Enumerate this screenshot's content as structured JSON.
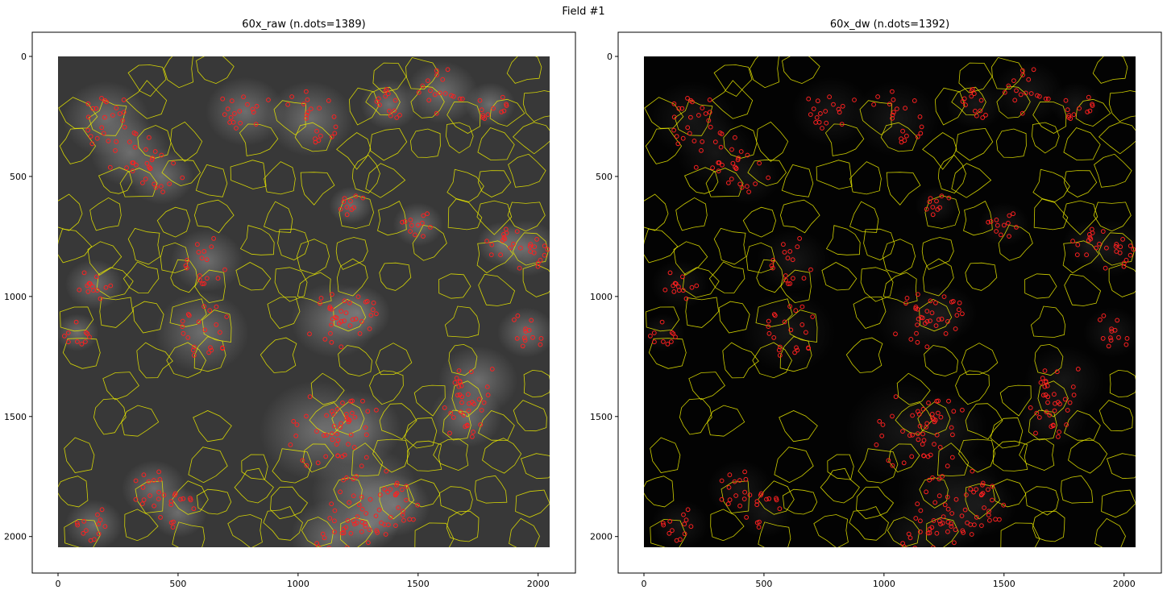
{
  "figure": {
    "suptitle": "Field #1",
    "panels": [
      {
        "title": "60x_raw (n.dots=1389)",
        "image": "raw",
        "x_ticks": [
          "0",
          "500",
          "1000",
          "1500",
          "2000"
        ],
        "y_ticks": [
          "0",
          "500",
          "1000",
          "1500",
          "2000"
        ]
      },
      {
        "title": "60x_dw (n.dots=1392)",
        "image": "dw",
        "x_ticks": [
          "0",
          "500",
          "1000",
          "1500",
          "2000"
        ],
        "y_ticks": [
          "0",
          "500",
          "1000",
          "1500",
          "2000"
        ]
      }
    ],
    "colors": {
      "contour": "#e6e600",
      "dot": "#ff2020",
      "raw_background": "#383838",
      "dw_background": "#030303"
    }
  }
}
